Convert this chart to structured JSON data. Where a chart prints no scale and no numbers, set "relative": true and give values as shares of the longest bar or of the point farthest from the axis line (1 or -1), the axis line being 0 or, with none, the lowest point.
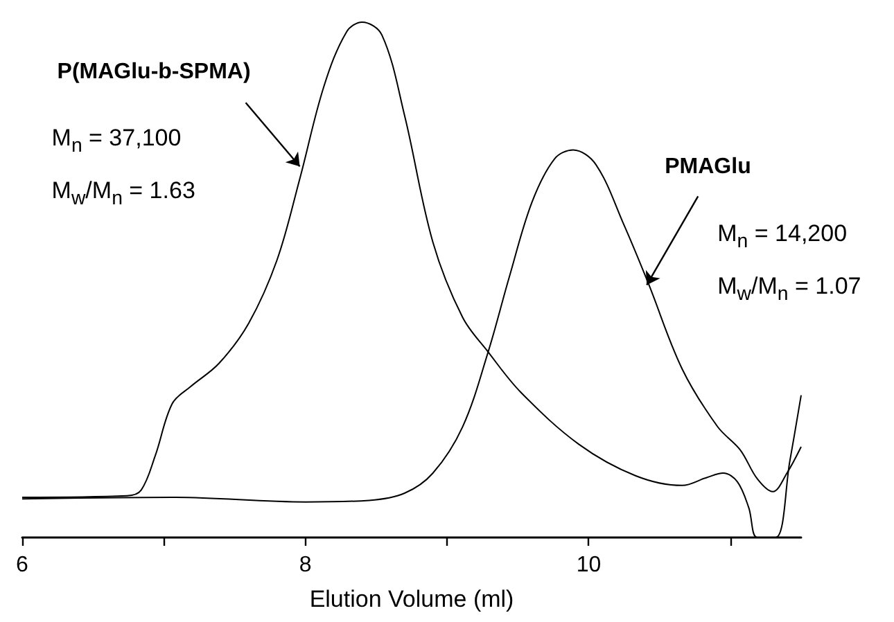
{
  "chart_data": {
    "type": "line",
    "relative": true,
    "xlabel": "Elution Volume (ml)",
    "xlim": [
      6,
      11.5
    ],
    "xticks": [
      6,
      {
        "value": 7,
        "label": null
      },
      8,
      {
        "value": 9,
        "label": null
      },
      10,
      {
        "value": 11,
        "label": null
      }
    ],
    "grid": false,
    "marker": "none",
    "line_style": "solid",
    "series": [
      {
        "color": "#000000",
        "x": [
          6.0,
          6.74,
          6.84,
          6.94,
          7.06,
          7.19,
          7.39,
          7.6,
          7.8,
          7.96,
          8.13,
          8.29,
          8.4,
          8.54,
          8.7,
          8.9,
          9.11,
          9.29,
          9.52,
          9.93,
          10.33,
          10.66,
          10.83,
          10.95,
          11.05,
          11.13,
          11.19,
          11.32,
          11.42,
          11.5
        ],
        "values": [
          0.078,
          0.081,
          0.092,
          0.159,
          0.26,
          0.293,
          0.338,
          0.416,
          0.539,
          0.696,
          0.875,
          0.981,
          1.0,
          0.975,
          0.819,
          0.573,
          0.427,
          0.36,
          0.282,
          0.181,
          0.12,
          0.101,
          0.116,
          0.125,
          0.108,
          0.058,
          0,
          0,
          0.148,
          0.276
        ]
      },
      {
        "color": "#000000",
        "x": [
          6.0,
          7.06,
          8.0,
          8.45,
          8.7,
          8.9,
          9.11,
          9.29,
          9.44,
          9.6,
          9.76,
          9.89,
          10.05,
          10.25,
          10.42,
          10.66,
          10.91,
          11.07,
          11.19,
          11.3,
          11.4,
          11.5
        ],
        "values": [
          0.075,
          0.078,
          0.069,
          0.072,
          0.086,
          0.125,
          0.215,
          0.36,
          0.506,
          0.651,
          0.735,
          0.752,
          0.724,
          0.606,
          0.494,
          0.327,
          0.215,
          0.17,
          0.114,
          0.089,
          0.125,
          0.176
        ]
      }
    ],
    "annotations": [
      {
        "text": "P(MAGlu-b-SPMA)",
        "x": 7.96,
        "y": 0.72
      },
      "M$_{n}$ = 37,100",
      "M$_{w}$/M$_{n}$ = 1.63",
      {
        "text": "PMAGlu",
        "x": 10.41,
        "y": 0.49
      },
      "M$_{n}$ = 14,200",
      "M$_{w}$/M$_{n}$ = 1.07"
    ]
  }
}
